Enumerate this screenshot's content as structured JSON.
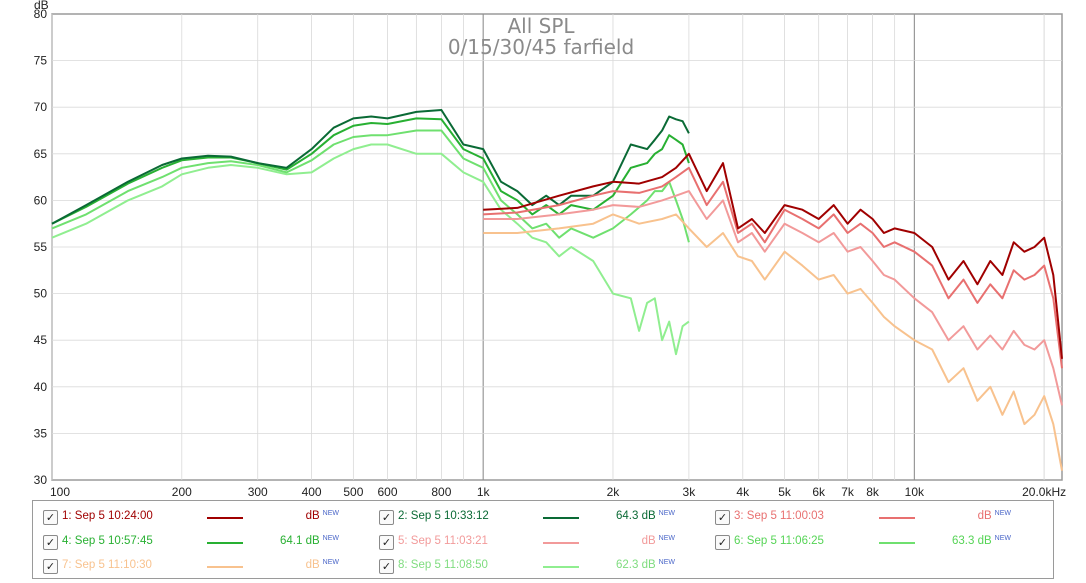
{
  "chart_data": {
    "type": "line",
    "title": "All SPL",
    "subtitle": "0/15/30/45 farfield",
    "ylabel": "dB",
    "xlabel": "",
    "x_scale": "log",
    "xlim": [
      100,
      22000
    ],
    "ylim": [
      30,
      80
    ],
    "grid": true,
    "y_ticks": [
      "30",
      "35",
      "40",
      "45",
      "50",
      "55",
      "60",
      "65",
      "70",
      "75",
      "80"
    ],
    "x_ticks": [
      {
        "value": 100,
        "label": "100"
      },
      {
        "value": 200,
        "label": "200"
      },
      {
        "value": 300,
        "label": "300"
      },
      {
        "value": 400,
        "label": "400"
      },
      {
        "value": 500,
        "label": "500"
      },
      {
        "value": 600,
        "label": "600"
      },
      {
        "value": 800,
        "label": "800"
      },
      {
        "value": 1000,
        "label": "1k"
      },
      {
        "value": 2000,
        "label": "2k"
      },
      {
        "value": 3000,
        "label": "3k"
      },
      {
        "value": 4000,
        "label": "4k"
      },
      {
        "value": 5000,
        "label": "5k"
      },
      {
        "value": 6000,
        "label": "6k"
      },
      {
        "value": 7000,
        "label": "7k"
      },
      {
        "value": 8000,
        "label": "8k"
      },
      {
        "value": 10000,
        "label": "10k"
      },
      {
        "value": 20000,
        "label": "20.0kHz"
      }
    ],
    "series": [
      {
        "name": "1: Sep 5 10:24:00",
        "color": "#a00000",
        "x": [
          1000,
          1200,
          1500,
          1800,
          2000,
          2300,
          2600,
          2800,
          3000,
          3300,
          3600,
          3900,
          4200,
          4500,
          5000,
          5500,
          6000,
          6500,
          7000,
          7500,
          8000,
          8500,
          9000,
          10000,
          11000,
          12000,
          13000,
          14000,
          15000,
          16000,
          17000,
          18000,
          19000,
          20000,
          21000,
          22000
        ],
        "y": [
          59,
          59.2,
          60.5,
          61.5,
          62,
          61.8,
          62.5,
          63.5,
          65,
          61,
          64,
          57,
          58,
          56.5,
          59.5,
          59,
          58,
          59.5,
          57.5,
          59,
          58,
          56.5,
          57,
          56.5,
          55,
          51.5,
          53.5,
          51,
          53.5,
          52,
          55.5,
          54.5,
          55,
          56,
          52,
          43
        ]
      },
      {
        "name": "2: Sep 5 10:33:12",
        "color": "#0a6a35",
        "x": [
          100,
          120,
          150,
          180,
          200,
          230,
          260,
          300,
          350,
          400,
          450,
          500,
          550,
          600,
          700,
          800,
          900,
          1000,
          1100,
          1200,
          1300,
          1400,
          1500,
          1600,
          1800,
          2000,
          2200,
          2400,
          2500,
          2600,
          2700,
          2800,
          2900,
          3000
        ],
        "y": [
          57.5,
          59.5,
          62,
          63.8,
          64.5,
          64.8,
          64.7,
          64,
          63.5,
          65.5,
          67.8,
          68.8,
          69,
          68.8,
          69.5,
          69.7,
          66,
          65.5,
          62,
          61,
          59.5,
          60.5,
          59.5,
          60.5,
          60.5,
          62,
          66,
          65.5,
          66.5,
          67.5,
          69,
          68.7,
          68.5,
          67.2
        ]
      },
      {
        "name": "3: Sep 5 11:00:03",
        "color": "#e87070",
        "x": [
          1000,
          1200,
          1500,
          1800,
          2000,
          2300,
          2600,
          2800,
          3000,
          3300,
          3600,
          3900,
          4200,
          4500,
          5000,
          5500,
          6000,
          6500,
          7000,
          7500,
          8000,
          8500,
          9000,
          10000,
          11000,
          12000,
          13000,
          14000,
          15000,
          16000,
          17000,
          18000,
          19000,
          20000,
          21000,
          22000
        ],
        "y": [
          58.5,
          58.7,
          59.5,
          60.5,
          61,
          60.8,
          61.5,
          62.5,
          63.5,
          59.5,
          62,
          56.5,
          57.5,
          55.5,
          59,
          58,
          57,
          58.5,
          56.5,
          57.5,
          56.5,
          55,
          55.5,
          54.5,
          53,
          49.5,
          51.5,
          49,
          51,
          49.5,
          52.5,
          51.5,
          52,
          53,
          49.5,
          42
        ]
      },
      {
        "name": "4: Sep 5 10:57:45",
        "color": "#28b032",
        "x": [
          100,
          120,
          150,
          180,
          200,
          230,
          260,
          300,
          350,
          400,
          450,
          500,
          550,
          600,
          700,
          800,
          900,
          1000,
          1100,
          1200,
          1300,
          1400,
          1500,
          1600,
          1800,
          2000,
          2200,
          2400,
          2500,
          2600,
          2700,
          2800,
          2900,
          3000
        ],
        "y": [
          57.5,
          59.3,
          61.8,
          63.5,
          64.3,
          64.6,
          64.6,
          64,
          63.3,
          65,
          67,
          68,
          68.3,
          68.2,
          68.8,
          68.7,
          65.5,
          64.5,
          61,
          60,
          58.5,
          59.5,
          58.5,
          59.5,
          59,
          60.5,
          63.5,
          64,
          65,
          65.5,
          67,
          66.5,
          66,
          64
        ]
      },
      {
        "name": "5: Sep 5 11:03:21",
        "color": "#f29a9a",
        "x": [
          1000,
          1200,
          1500,
          1800,
          2000,
          2300,
          2600,
          2800,
          3000,
          3300,
          3600,
          3900,
          4200,
          4500,
          5000,
          5500,
          6000,
          6500,
          7000,
          7500,
          8000,
          8500,
          9000,
          10000,
          11000,
          12000,
          13000,
          14000,
          15000,
          16000,
          17000,
          18000,
          19000,
          20000,
          21000,
          22000
        ],
        "y": [
          58,
          58,
          58.5,
          59,
          59.5,
          59.3,
          60,
          60.5,
          61,
          58,
          60,
          55.5,
          56.5,
          54.5,
          57.5,
          56.5,
          55.5,
          56.5,
          54.5,
          55,
          53.5,
          52,
          51.5,
          49.5,
          48,
          45,
          46.5,
          44,
          45.5,
          44,
          46,
          44.5,
          44,
          45,
          42,
          38
        ]
      },
      {
        "name": "6: Sep 5 11:06:25",
        "color": "#6fe06f",
        "x": [
          100,
          120,
          150,
          180,
          200,
          230,
          260,
          300,
          350,
          400,
          450,
          500,
          550,
          600,
          700,
          800,
          900,
          1000,
          1100,
          1200,
          1300,
          1400,
          1500,
          1600,
          1800,
          2000,
          2200,
          2400,
          2500,
          2600,
          2700,
          2800,
          2900,
          3000
        ],
        "y": [
          57,
          58.5,
          61,
          62.5,
          63.5,
          64,
          64.2,
          63.8,
          63,
          64.3,
          66,
          66.8,
          67,
          67,
          67.5,
          67.5,
          64.5,
          63.5,
          60,
          58.5,
          57,
          57.5,
          56,
          57,
          56,
          57,
          58.5,
          60,
          61,
          61,
          62,
          60,
          58,
          55.5
        ]
      },
      {
        "name": "7: Sep 5 11:10:30",
        "color": "#f8c28e",
        "x": [
          1000,
          1200,
          1500,
          1800,
          2000,
          2300,
          2600,
          2800,
          3000,
          3300,
          3600,
          3900,
          4200,
          4500,
          5000,
          5500,
          6000,
          6500,
          7000,
          7500,
          8000,
          8500,
          9000,
          10000,
          11000,
          12000,
          13000,
          14000,
          15000,
          16000,
          17000,
          18000,
          19000,
          20000,
          21000,
          22000
        ],
        "y": [
          56.5,
          56.5,
          57,
          57.5,
          58.5,
          57.5,
          58,
          58.5,
          57,
          55,
          56.5,
          54,
          53.5,
          51.5,
          54.5,
          53,
          51.5,
          52,
          50,
          50.5,
          49,
          47.5,
          46.5,
          45,
          44,
          40.5,
          42,
          38.5,
          40,
          37,
          39.5,
          36,
          37,
          39,
          36,
          31
        ]
      },
      {
        "name": "8: Sep 5 11:08:50",
        "color": "#90ee90",
        "x": [
          100,
          120,
          150,
          180,
          200,
          230,
          260,
          300,
          350,
          400,
          450,
          500,
          550,
          600,
          700,
          800,
          900,
          1000,
          1100,
          1200,
          1300,
          1400,
          1500,
          1600,
          1800,
          2000,
          2200,
          2300,
          2400,
          2500,
          2600,
          2700,
          2800,
          2900,
          3000
        ],
        "y": [
          56,
          57.5,
          60,
          61.5,
          62.8,
          63.5,
          63.8,
          63.5,
          62.8,
          63,
          64.5,
          65.5,
          66,
          66,
          65,
          65,
          63,
          62,
          59,
          57.5,
          56,
          55.5,
          54,
          55,
          53.5,
          50,
          49.5,
          46,
          49,
          49.5,
          45,
          47,
          43.5,
          46.5,
          47
        ]
      }
    ]
  },
  "legend": {
    "items": [
      {
        "label": "1: Sep 5 10:24:00",
        "value": "dB",
        "new": "NEW",
        "color": "#a00000",
        "checked": "✓"
      },
      {
        "label": "2: Sep 5 10:33:12",
        "value": "64.3 dB",
        "new": "NEW",
        "color": "#0a6a35",
        "checked": "✓"
      },
      {
        "label": "3: Sep 5 11:00:03",
        "value": "dB",
        "new": "NEW",
        "color": "#e87070",
        "checked": "✓"
      },
      {
        "label": "4: Sep 5 10:57:45",
        "value": "64.1 dB",
        "new": "NEW",
        "color": "#28b032",
        "checked": "✓"
      },
      {
        "label": "5: Sep 5 11:03:21",
        "value": "dB",
        "new": "NEW",
        "color": "#f29a9a",
        "checked": "✓"
      },
      {
        "label": "6: Sep 5 11:06:25",
        "value": "63.3 dB",
        "new": "NEW",
        "color": "#6fe06f",
        "checked": "✓"
      },
      {
        "label": "7: Sep 5 11:10:30",
        "value": "dB",
        "new": "NEW",
        "color": "#f8c28e",
        "checked": "✓"
      },
      {
        "label": "8: Sep 5 11:08:50",
        "value": "62.3 dB",
        "new": "NEW",
        "color": "#90ee90",
        "checked": "✓"
      }
    ]
  }
}
